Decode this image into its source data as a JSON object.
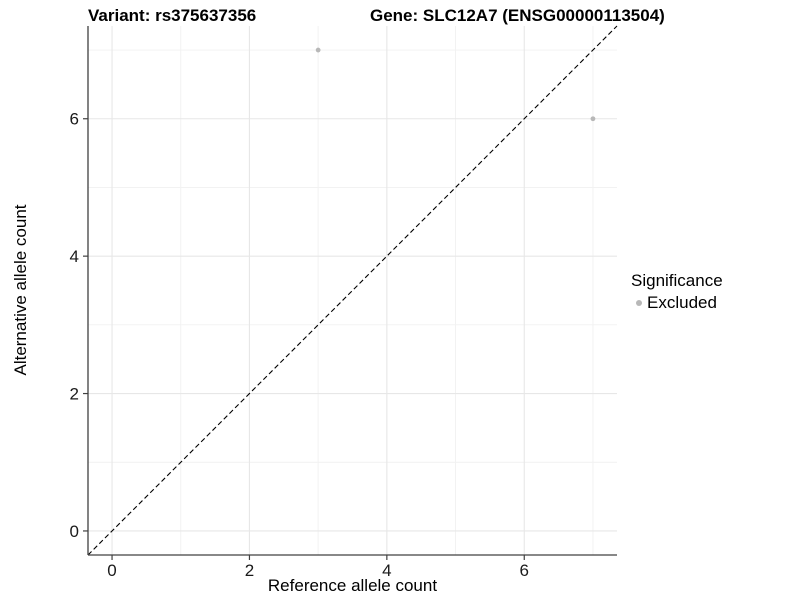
{
  "header": {
    "title_left": "Variant: rs375637356",
    "title_right": "Gene: SLC12A7 (ENSG00000113504)"
  },
  "chart_data": {
    "type": "scatter",
    "title_left": "Variant: rs375637356",
    "title_right": "Gene: SLC12A7 (ENSG00000113504)",
    "xlabel": "Reference allele count",
    "ylabel": "Alternative allele count",
    "xlim": [
      -0.35,
      7.35
    ],
    "ylim": [
      -0.35,
      7.35
    ],
    "x_major_ticks": [
      0,
      2,
      4,
      6
    ],
    "y_major_ticks": [
      0,
      2,
      4,
      6
    ],
    "x_minor_ticks": [
      1,
      3,
      5,
      7
    ],
    "y_minor_ticks": [
      1,
      3,
      5,
      7
    ],
    "grid": "major and minor, light gray, white panel",
    "reference_line": {
      "equation": "y = x",
      "style": "dashed",
      "color": "#000000"
    },
    "series": [
      {
        "name": "Excluded",
        "color": "#b8b8b8",
        "points": [
          {
            "x": 3,
            "y": 7
          },
          {
            "x": 7,
            "y": 6
          }
        ]
      }
    ],
    "legend": {
      "title": "Significance",
      "position": "right",
      "items": [
        {
          "label": "Excluded",
          "color": "#b8b8b8"
        }
      ]
    }
  },
  "colors": {
    "background": "#ffffff",
    "axis_line": "#404040",
    "tick_label": "#1a1a1a",
    "grid_major": "#e7e7e7",
    "grid_minor": "#f1f1f1",
    "point": "#b8b8b8",
    "title_text": "#000000"
  }
}
